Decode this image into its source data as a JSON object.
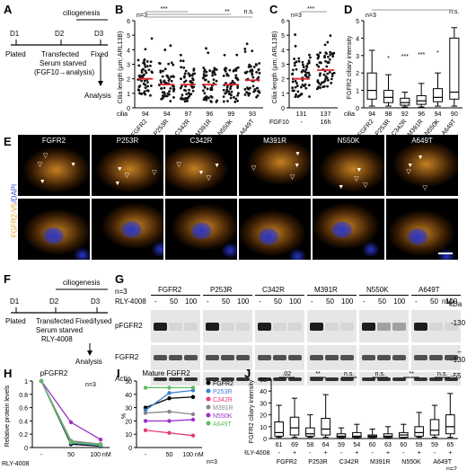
{
  "panels": {
    "A": {
      "label": "A",
      "ciliogenesis": "ciliogenesis",
      "days": [
        "D1",
        "D2",
        "D3"
      ],
      "steps": [
        "Plated",
        "Transfected",
        "Serum starved",
        "(FGF10→analysis)",
        "Fixed",
        "Analysis"
      ]
    },
    "B": {
      "label": "B",
      "n": "n=3",
      "ylabel": "Cilia length (μm; ARL13B)",
      "cilia_label": "cilia",
      "counts": [
        "94",
        "94",
        "97",
        "96",
        "99",
        "93"
      ],
      "categories": [
        "FGFR2",
        "P253R",
        "C342R",
        "M391R",
        "N550K",
        "A649T"
      ],
      "sig": [
        "***",
        "**",
        "n.s."
      ]
    },
    "C": {
      "label": "C",
      "n": "n=3",
      "ylabel": "Cilia length (μm; ARL13B)",
      "counts": [
        "131",
        "137"
      ],
      "fgf_label": "FGF10",
      "conds": [
        "-",
        "16h"
      ],
      "sig": "***"
    },
    "D": {
      "label": "D",
      "n": "n=3",
      "ylabel": "FGFR2 ciliary intensity",
      "cilia_label": "cilia",
      "counts": [
        "94",
        "98",
        "92",
        "96",
        "94",
        "90"
      ],
      "categories": [
        "FGFR2",
        "P253R",
        "C342R",
        "M391R",
        "N550K",
        "A649T"
      ],
      "sig": [
        "*",
        "***",
        "***",
        "*",
        "n.s."
      ]
    },
    "E": {
      "label": "E",
      "titles": [
        "FGFR2",
        "P253R",
        "C342R",
        "M391R",
        "N550K",
        "A649T"
      ],
      "side_label_a": "FGFR2-V5",
      "side_label_b": "/DAPI"
    },
    "F": {
      "label": "F",
      "ciliogenesis": "ciliogenesis",
      "days": [
        "D1",
        "D2",
        "D3"
      ],
      "steps": [
        "Plated",
        "Transfected",
        "Serum starved",
        "RLY-4008",
        "Fixed/lysed",
        "Analysis"
      ]
    },
    "G": {
      "label": "G",
      "n": "n=3",
      "rly": "RLY-4008",
      "groups": [
        "FGFR2",
        "P253R",
        "C342R",
        "M391R",
        "N550K",
        "A649T"
      ],
      "doses": [
        "-",
        "50",
        "100"
      ],
      "unit": "nM",
      "rows": [
        "pFGFR2",
        "FGFR2",
        "Actin"
      ],
      "kda": "kDa",
      "mw": [
        "130",
        "130",
        "55"
      ]
    },
    "H": {
      "label": "H",
      "title": "pFGFR2",
      "n": "n=3",
      "ylabel": "Relative protein levels",
      "xlabel": "RLY-4008",
      "ticks": [
        "-",
        "50",
        "100 nM"
      ]
    },
    "I": {
      "label": "I",
      "title": "Mature FGFR2",
      "ylabel": "%",
      "n": "n=3",
      "legend": [
        "FGFR2",
        "P253R",
        "C342R",
        "M391R",
        "N550K",
        "A649T"
      ]
    },
    "J": {
      "label": "J",
      "ylabel": "FGFR2 ciliary intensity",
      "n": "n=2",
      "rly": "RLY-4008",
      "sig": [
        ".02",
        "**",
        "n.s.",
        "n.s.",
        "**",
        "n.s."
      ],
      "counts": [
        "61",
        "69",
        "58",
        "64",
        "59",
        "54",
        "60",
        "63",
        "60",
        "59",
        "59",
        "65"
      ],
      "signs": [
        "-",
        "+",
        "-",
        "+",
        "-",
        "+",
        "-",
        "+",
        "-",
        "+",
        "-",
        "+"
      ],
      "categories": [
        "FGFR2",
        "P253R",
        "C342R",
        "M391R",
        "N550K",
        "A649T"
      ]
    }
  },
  "chart_data": [
    {
      "type": "scatter",
      "panel": "B",
      "categories": [
        "FGFR2",
        "P253R",
        "C342R",
        "M391R",
        "N550K",
        "A649T"
      ],
      "ylim": [
        0,
        6
      ],
      "yticks": [
        0,
        1,
        2,
        3,
        4,
        5,
        6
      ],
      "ylabel": "Cilia length (μm; ARL13B)",
      "medians": [
        2.0,
        1.6,
        1.6,
        1.6,
        1.6,
        1.9
      ]
    },
    {
      "type": "scatter",
      "panel": "C",
      "categories": [
        "-",
        "16h"
      ],
      "ylim": [
        0,
        6
      ],
      "yticks": [
        0,
        1,
        2,
        3,
        4,
        5,
        6
      ],
      "ylabel": "Cilia length (μm; ARL13B)",
      "medians": [
        2.0,
        2.6
      ]
    },
    {
      "type": "box",
      "panel": "D",
      "categories": [
        "FGFR2",
        "P253R",
        "C342R",
        "M391R",
        "N550K",
        "A649T"
      ],
      "ylim": [
        0,
        5
      ],
      "yticks": [
        0,
        1,
        2,
        3,
        4,
        5
      ],
      "ylabel": "FGFR2 ciliary intensity",
      "boxes": [
        {
          "lo": 0.1,
          "q1": 0.5,
          "med": 1.0,
          "q3": 2.0,
          "hi": 3.3
        },
        {
          "lo": 0.1,
          "q1": 0.3,
          "med": 0.6,
          "q3": 1.0,
          "hi": 1.9
        },
        {
          "lo": 0.05,
          "q1": 0.15,
          "med": 0.3,
          "q3": 0.55,
          "hi": 0.9
        },
        {
          "lo": 0.05,
          "q1": 0.2,
          "med": 0.4,
          "q3": 0.7,
          "hi": 1.4
        },
        {
          "lo": 0.1,
          "q1": 0.35,
          "med": 0.6,
          "q3": 1.1,
          "hi": 2.0
        },
        {
          "lo": 0.1,
          "q1": 0.5,
          "med": 0.9,
          "q3": 4.0,
          "hi": 4.6
        }
      ]
    },
    {
      "type": "line",
      "panel": "H",
      "title": "pFGFR2",
      "x": [
        "-",
        "50",
        "100 nM"
      ],
      "ylim": [
        0,
        1
      ],
      "yticks": [
        0,
        0.2,
        0.4,
        0.6,
        0.8,
        1
      ],
      "ylabel": "Relative protein levels",
      "series": [
        {
          "name": "FGFR2",
          "color": "#000000",
          "values": [
            1.0,
            0.05,
            0.02
          ]
        },
        {
          "name": "P253R",
          "color": "#3a7fd5",
          "values": [
            1.0,
            0.07,
            0.03
          ]
        },
        {
          "name": "C342R",
          "color": "#e8397a",
          "values": [
            1.0,
            0.1,
            0.05
          ]
        },
        {
          "name": "M391R",
          "color": "#888888",
          "values": [
            1.0,
            0.1,
            0.05
          ]
        },
        {
          "name": "N550K",
          "color": "#9b30c9",
          "values": [
            1.0,
            0.38,
            0.12
          ]
        },
        {
          "name": "A649T",
          "color": "#5cbf5c",
          "values": [
            1.0,
            0.08,
            0.04
          ]
        }
      ]
    },
    {
      "type": "line",
      "panel": "I",
      "title": "Mature FGFR2",
      "x": [
        "-",
        "50",
        "100 nM"
      ],
      "ylim": [
        0,
        50
      ],
      "yticks": [
        0,
        10,
        20,
        30,
        40,
        50
      ],
      "ylabel": "%",
      "series": [
        {
          "name": "FGFR2",
          "color": "#000000",
          "values": [
            30,
            37,
            38
          ]
        },
        {
          "name": "P253R",
          "color": "#3a7fd5",
          "values": [
            28,
            41,
            43
          ]
        },
        {
          "name": "C342R",
          "color": "#e8397a",
          "values": [
            13,
            11,
            9
          ]
        },
        {
          "name": "M391R",
          "color": "#888888",
          "values": [
            26,
            27,
            25
          ]
        },
        {
          "name": "N550K",
          "color": "#9b30c9",
          "values": [
            20,
            20,
            21
          ]
        },
        {
          "name": "A649T",
          "color": "#5cbf5c",
          "values": [
            45,
            45,
            45
          ]
        }
      ]
    },
    {
      "type": "box",
      "panel": "J",
      "categories": [
        "FGFR2",
        "P253R",
        "C342R",
        "M391R",
        "N550K",
        "A649T"
      ],
      "ylim": [
        0,
        50
      ],
      "yticks": [
        0,
        10,
        20,
        30,
        40,
        50
      ],
      "ylabel": "FGFR2 ciliary intensity",
      "boxes": [
        {
          "lo": 1,
          "q1": 2,
          "med": 5,
          "q3": 14,
          "hi": 28
        },
        {
          "lo": 1,
          "q1": 3,
          "med": 9,
          "q3": 18,
          "hi": 34
        },
        {
          "lo": 1,
          "q1": 2,
          "med": 4,
          "q3": 9,
          "hi": 20
        },
        {
          "lo": 1,
          "q1": 3,
          "med": 8,
          "q3": 17,
          "hi": 37
        },
        {
          "lo": 0.5,
          "q1": 1,
          "med": 2,
          "q3": 4,
          "hi": 9
        },
        {
          "lo": 0.5,
          "q1": 1,
          "med": 2,
          "q3": 5,
          "hi": 12
        },
        {
          "lo": 0.5,
          "q1": 1,
          "med": 2,
          "q3": 3,
          "hi": 8
        },
        {
          "lo": 0.5,
          "q1": 1,
          "med": 2,
          "q3": 4,
          "hi": 10
        },
        {
          "lo": 0.5,
          "q1": 1,
          "med": 3,
          "q3": 5,
          "hi": 12
        },
        {
          "lo": 1,
          "q1": 2,
          "med": 5,
          "q3": 10,
          "hi": 22
        },
        {
          "lo": 1,
          "q1": 3,
          "med": 7,
          "q3": 16,
          "hi": 28
        },
        {
          "lo": 1,
          "q1": 4,
          "med": 10,
          "q3": 20,
          "hi": 38
        }
      ]
    }
  ]
}
